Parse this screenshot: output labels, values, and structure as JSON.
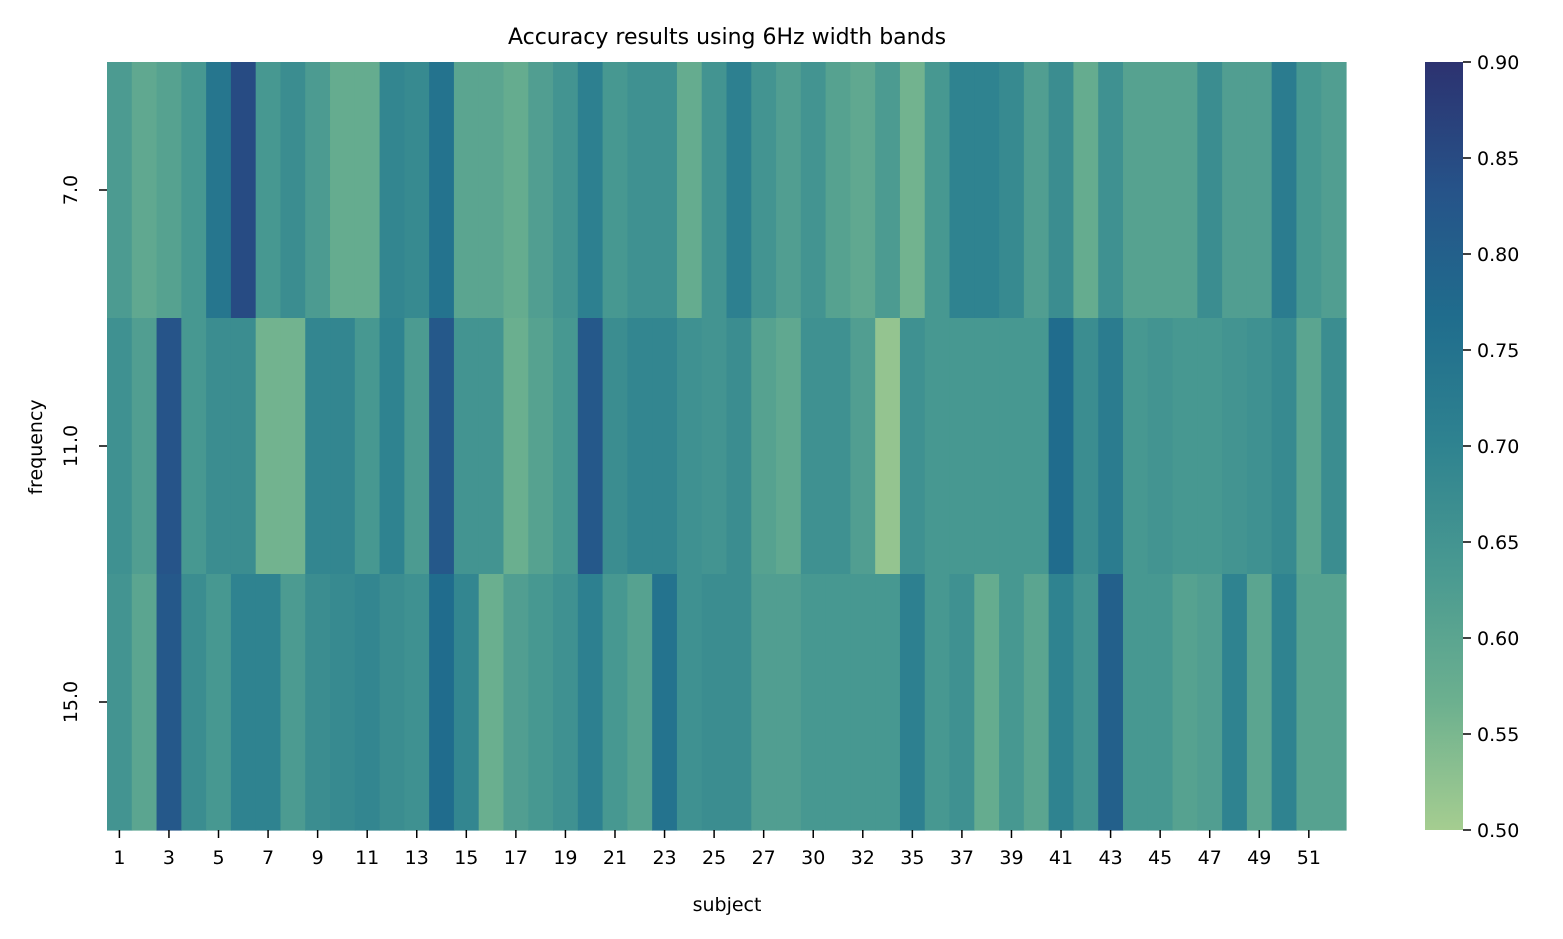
{
  "chart_data": {
    "type": "heatmap",
    "title": "Accuracy results using 6Hz width bands",
    "xlabel": "subject",
    "ylabel": "frequency",
    "x": [
      "1",
      "2",
      "3",
      "4",
      "5",
      "6",
      "7",
      "8",
      "9",
      "10",
      "11",
      "12",
      "13",
      "14",
      "15",
      "16",
      "17",
      "18",
      "19",
      "20",
      "21",
      "22",
      "23",
      "24",
      "25",
      "26",
      "27",
      "29",
      "30",
      "31",
      "32",
      "33",
      "35",
      "36",
      "37",
      "38",
      "39",
      "40",
      "41",
      "42",
      "43",
      "44",
      "45",
      "46",
      "47",
      "48",
      "49",
      "50",
      "51",
      "52"
    ],
    "x_ticklabels": [
      "1",
      "3",
      "5",
      "7",
      "9",
      "11",
      "13",
      "15",
      "17",
      "19",
      "21",
      "23",
      "25",
      "27",
      "30",
      "32",
      "35",
      "37",
      "39",
      "41",
      "43",
      "45",
      "47",
      "49",
      "51"
    ],
    "y": [
      "7.0",
      "11.0",
      "15.0"
    ],
    "values": [
      [
        0.63,
        0.59,
        0.61,
        0.64,
        0.74,
        0.85,
        0.64,
        0.67,
        0.63,
        0.58,
        0.58,
        0.69,
        0.68,
        0.75,
        0.6,
        0.6,
        0.58,
        0.62,
        0.65,
        0.71,
        0.64,
        0.66,
        0.66,
        0.58,
        0.65,
        0.71,
        0.65,
        0.62,
        0.65,
        0.61,
        0.59,
        0.63,
        0.56,
        0.64,
        0.7,
        0.7,
        0.68,
        0.62,
        0.67,
        0.58,
        0.66,
        0.61,
        0.61,
        0.61,
        0.67,
        0.62,
        0.62,
        0.72,
        0.64,
        0.62
      ],
      [
        0.66,
        0.62,
        0.83,
        0.64,
        0.67,
        0.67,
        0.56,
        0.56,
        0.69,
        0.69,
        0.64,
        0.7,
        0.63,
        0.82,
        0.65,
        0.65,
        0.57,
        0.61,
        0.64,
        0.82,
        0.67,
        0.69,
        0.69,
        0.66,
        0.65,
        0.67,
        0.61,
        0.59,
        0.66,
        0.66,
        0.62,
        0.52,
        0.66,
        0.64,
        0.64,
        0.64,
        0.64,
        0.64,
        0.77,
        0.67,
        0.72,
        0.64,
        0.65,
        0.64,
        0.64,
        0.65,
        0.66,
        0.68,
        0.6,
        0.67
      ],
      [
        0.65,
        0.6,
        0.82,
        0.67,
        0.64,
        0.7,
        0.7,
        0.63,
        0.67,
        0.68,
        0.69,
        0.67,
        0.66,
        0.77,
        0.69,
        0.57,
        0.62,
        0.64,
        0.66,
        0.71,
        0.64,
        0.61,
        0.75,
        0.66,
        0.67,
        0.67,
        0.62,
        0.62,
        0.64,
        0.64,
        0.64,
        0.64,
        0.71,
        0.64,
        0.66,
        0.58,
        0.64,
        0.6,
        0.7,
        0.65,
        0.8,
        0.64,
        0.64,
        0.61,
        0.62,
        0.7,
        0.6,
        0.7,
        0.61,
        0.61
      ]
    ],
    "colorbar": {
      "vmin": 0.5,
      "vmax": 0.9,
      "ticks": [
        "0.50",
        "0.55",
        "0.60",
        "0.65",
        "0.70",
        "0.75",
        "0.80",
        "0.85",
        "0.90"
      ],
      "colormap": "crest",
      "colors": [
        "#a5cd90",
        "#6cb08f",
        "#4a9a91",
        "#2f8390",
        "#206d8d",
        "#265389",
        "#2c3270"
      ]
    },
    "legend": "colorbar-right",
    "grid": false
  }
}
